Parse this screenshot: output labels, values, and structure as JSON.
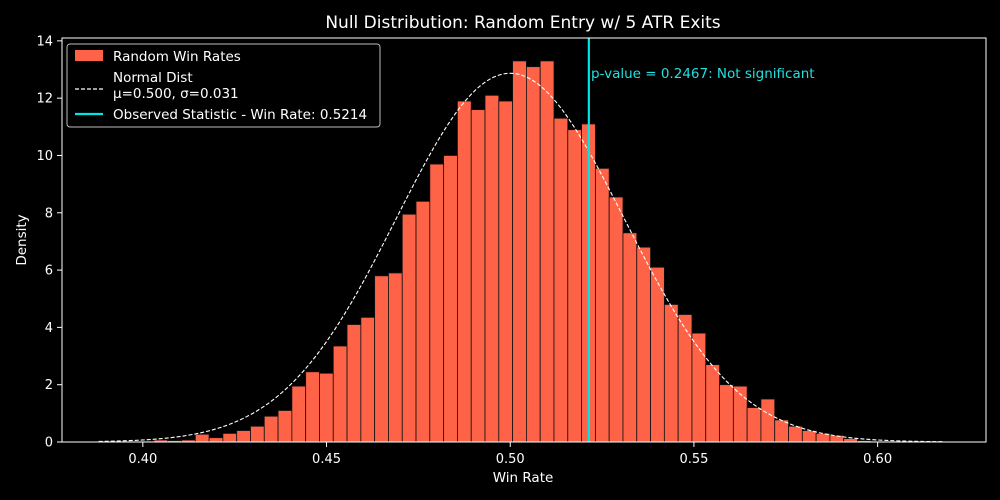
{
  "chart_data": {
    "type": "bar",
    "title": "Null Distribution: Random Entry w/ 5 ATR Exits",
    "xlabel": "Win Rate",
    "ylabel": "Density",
    "xlim": [
      0.378,
      0.6295
    ],
    "ylim": [
      0,
      14.1
    ],
    "xticks": [
      0.4,
      0.45,
      0.5,
      0.55,
      0.6
    ],
    "xtick_labels": [
      "0.40",
      "0.45",
      "0.50",
      "0.55",
      "0.60"
    ],
    "yticks": [
      0,
      2,
      4,
      6,
      8,
      10,
      12,
      14
    ],
    "ytick_labels": [
      "0",
      "2",
      "4",
      "6",
      "8",
      "10",
      "12",
      "14"
    ],
    "grid": false,
    "legend_position": "top-left",
    "colors": {
      "background": "#000000",
      "bars": "#ff6347",
      "bar_edge": "#111111",
      "normal_curve": "#ffffff",
      "observed_line": "#00e5e5",
      "annotation": "#22e0e0",
      "axes": "#ffffff"
    },
    "histogram": {
      "name": "Random Win Rates",
      "bin_start": 0.388,
      "bin_width": 0.003755,
      "densities": [
        0.03,
        0.03,
        0.03,
        0.03,
        0.07,
        0.05,
        0.07,
        0.27,
        0.15,
        0.3,
        0.4,
        0.55,
        0.9,
        1.1,
        1.95,
        2.45,
        2.4,
        3.35,
        4.1,
        4.35,
        5.8,
        5.9,
        7.95,
        8.4,
        9.7,
        10.0,
        11.9,
        11.6,
        12.1,
        11.9,
        13.3,
        13.1,
        13.3,
        11.3,
        10.9,
        11.1,
        9.55,
        8.55,
        7.3,
        6.8,
        6.1,
        4.8,
        4.45,
        3.8,
        2.7,
        2.0,
        1.95,
        1.2,
        1.5,
        0.77,
        0.55,
        0.4,
        0.3,
        0.23,
        0.12,
        0.05,
        0.03,
        0.02,
        0.02,
        0.02,
        0.02
      ]
    },
    "normal_curve": {
      "name": "Normal Dist\nμ=0.500, σ=0.031",
      "label_lines": [
        "Normal Dist",
        "μ=0.500, σ=0.031"
      ],
      "mu": 0.5,
      "sigma": 0.031,
      "x_range": [
        0.388,
        0.618
      ]
    },
    "observed": {
      "name": "Observed Statistic - Win Rate: 0.5214",
      "value": 0.5214
    },
    "annotation": "p-value = 0.2467:  Not significant"
  }
}
